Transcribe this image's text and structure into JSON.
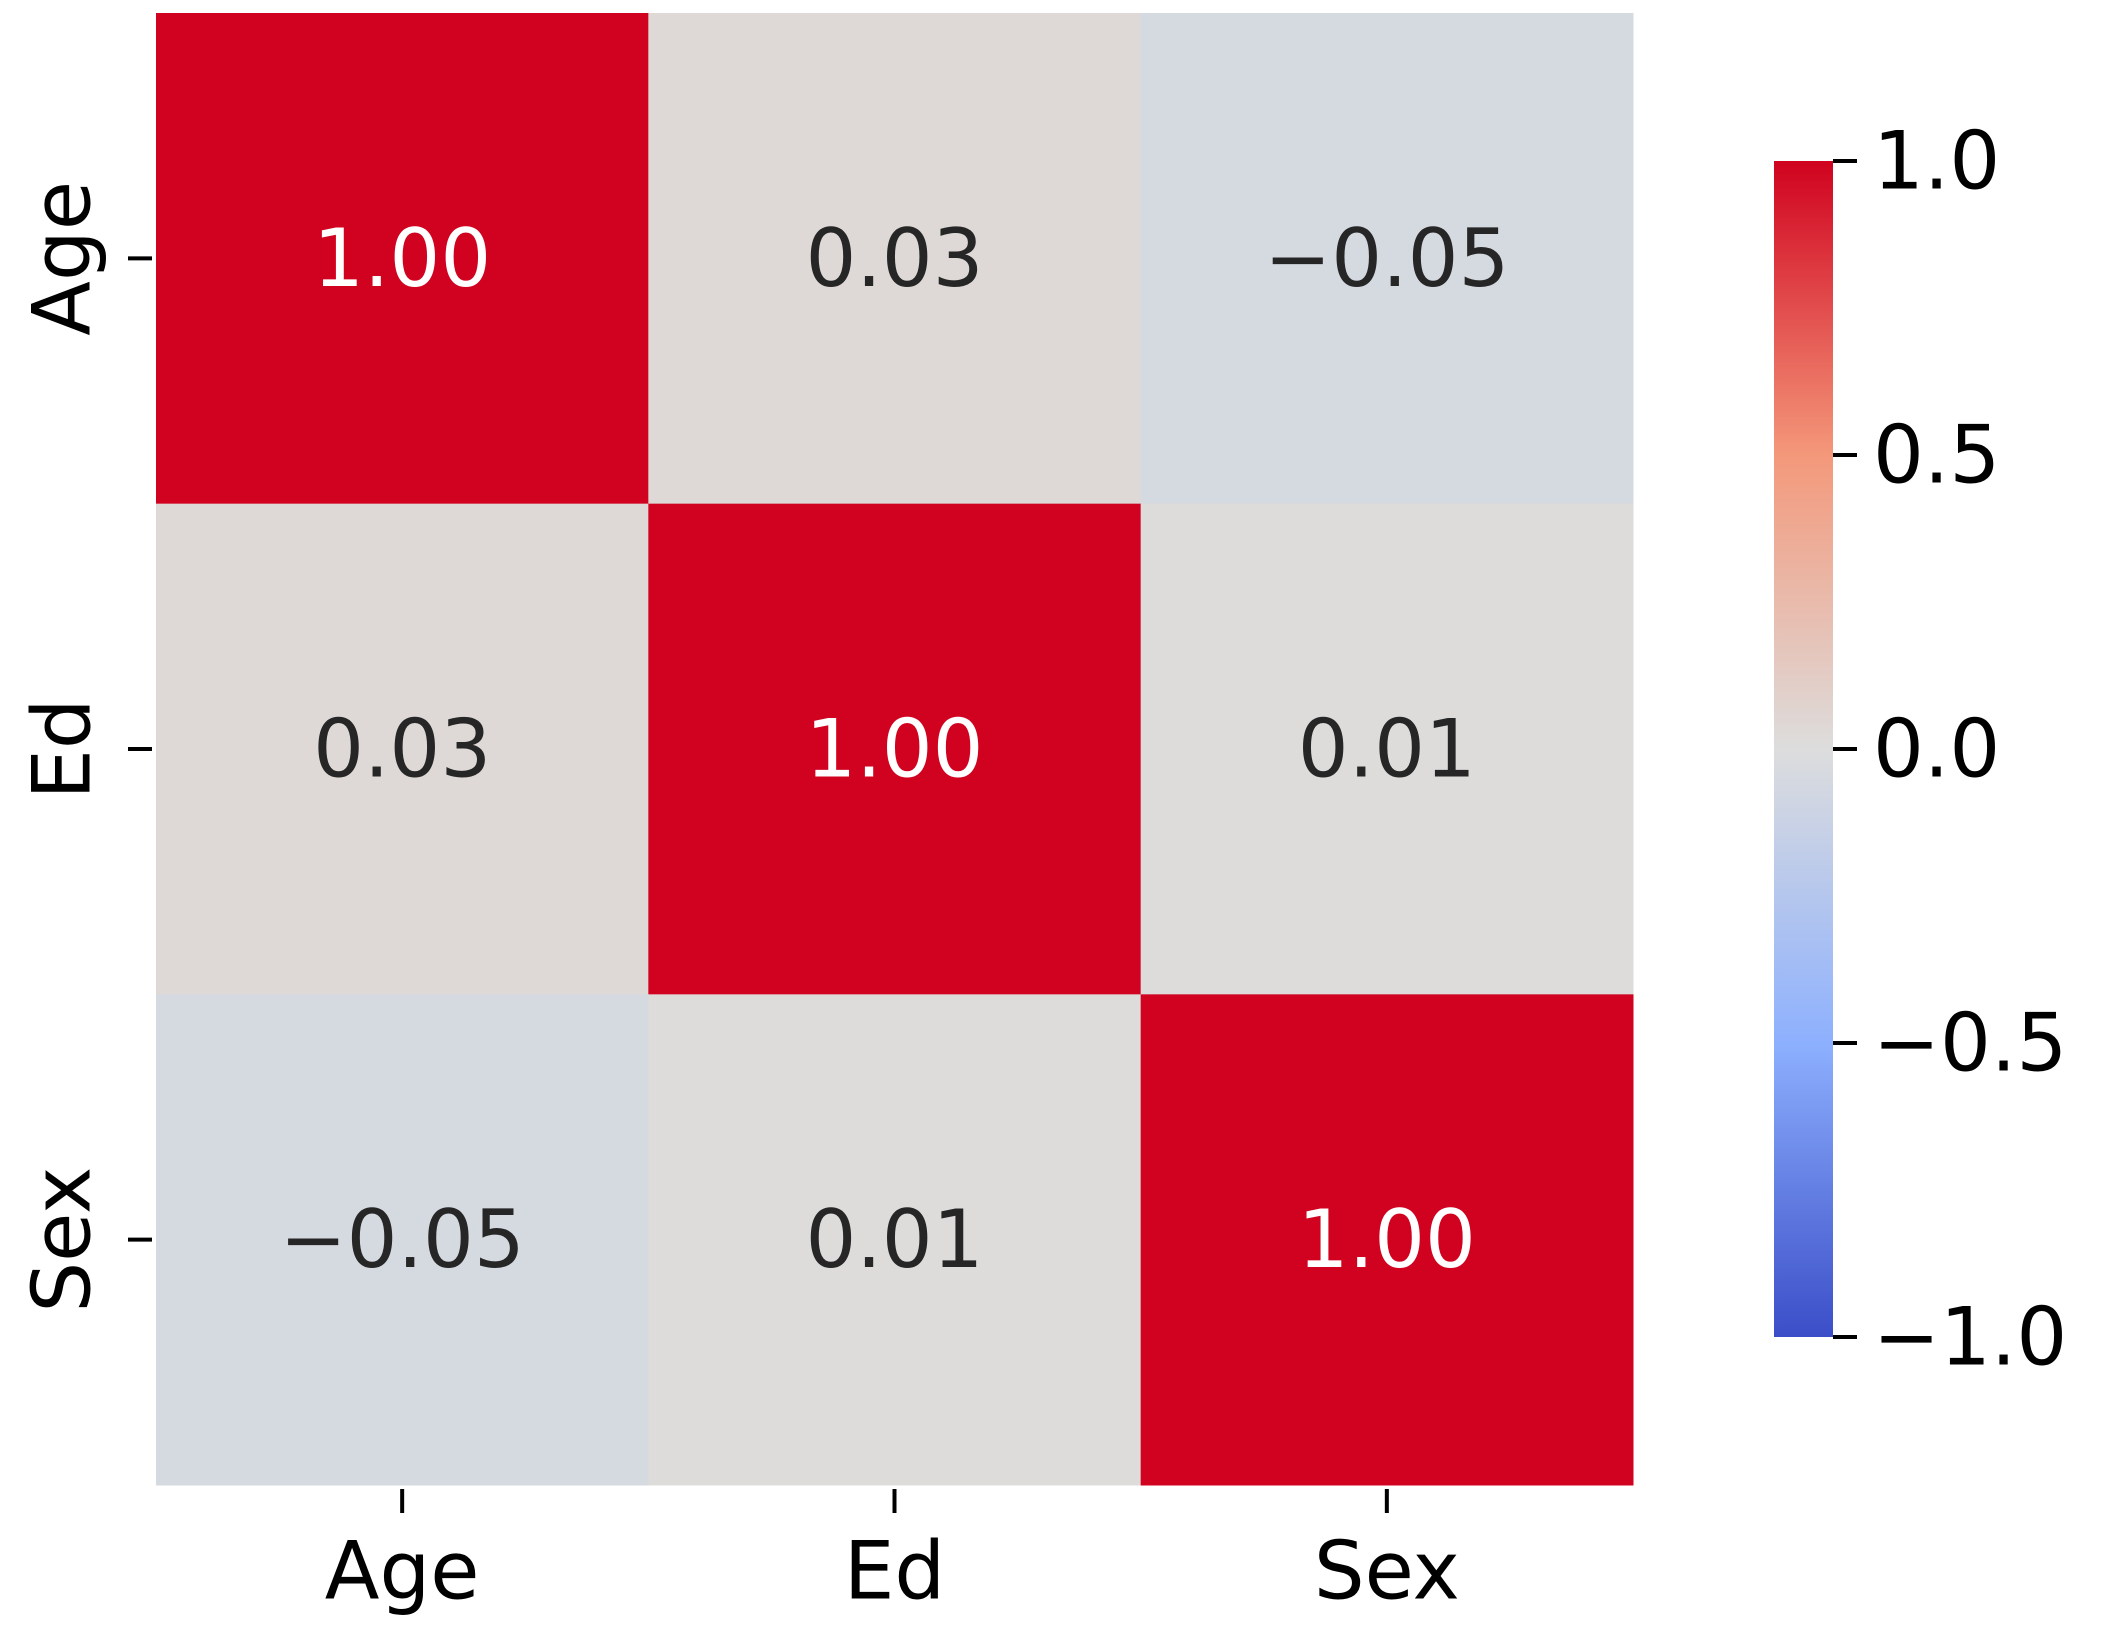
{
  "chart_data": {
    "type": "heatmap",
    "x_categories": [
      "Age",
      "Ed",
      "Sex"
    ],
    "y_categories": [
      "Age",
      "Ed",
      "Sex"
    ],
    "values": [
      [
        1,
        0.03,
        -0.05
      ],
      [
        0.03,
        1,
        0.01
      ],
      [
        -0.05,
        0.01,
        1
      ]
    ],
    "value_labels": [
      [
        "1.00",
        "0.03",
        "−0.05"
      ],
      [
        "0.03",
        "1.00",
        "0.01"
      ],
      [
        "−0.05",
        "0.01",
        "1.00"
      ]
    ],
    "colormap": "coolwarm",
    "clim": [
      -1,
      1
    ],
    "cticks": [
      {
        "value": 1,
        "label": "1.0"
      },
      {
        "value": 0.5,
        "label": "0.5"
      },
      {
        "value": 0,
        "label": "0.0"
      },
      {
        "value": -0.5,
        "label": "−0.5"
      },
      {
        "value": -1,
        "label": "−1.0"
      }
    ]
  }
}
